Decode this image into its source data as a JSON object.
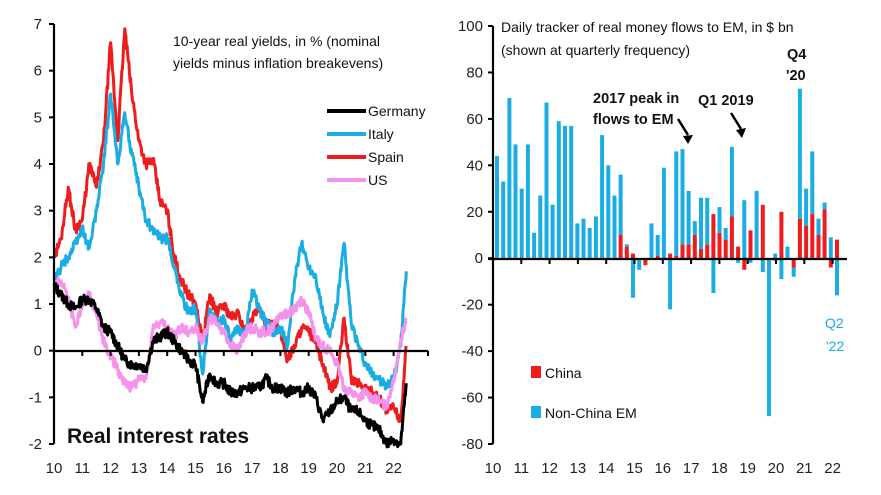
{
  "chart_data": [
    {
      "type": "line",
      "panel_label": "Real interest rates",
      "title": "10-year real yields, in % (nominal yields minus inflation breakevens)",
      "title_lines": [
        "10-year real yields, in % (nominal",
        "yields minus inflation breakevens)"
      ],
      "xlabel": "",
      "ylabel": "",
      "ylim": [
        -2,
        7
      ],
      "yticks": [
        "7",
        "6",
        "5",
        "4",
        "3",
        "2",
        "1",
        "0",
        "-1",
        "-2"
      ],
      "ytick_values": [
        7,
        6,
        5,
        4,
        3,
        2,
        1,
        0,
        -1,
        -2
      ],
      "xticks": [
        "10",
        "11",
        "12",
        "13",
        "14",
        "15",
        "16",
        "17",
        "18",
        "19",
        "20",
        "21",
        "22"
      ],
      "xlim": [
        2010,
        2022.75
      ],
      "legend_position": "top-right",
      "grid": false,
      "series": [
        {
          "name": "Germany",
          "color": "#000000",
          "x": [
            2010,
            2010.25,
            2010.5,
            2010.75,
            2011,
            2011.25,
            2011.5,
            2011.75,
            2012,
            2012.25,
            2012.5,
            2012.75,
            2013,
            2013.25,
            2013.5,
            2013.75,
            2014,
            2014.25,
            2014.5,
            2014.75,
            2015,
            2015.25,
            2015.5,
            2015.75,
            2016,
            2016.25,
            2016.5,
            2016.75,
            2017,
            2017.25,
            2017.5,
            2017.75,
            2018,
            2018.25,
            2018.5,
            2018.75,
            2019,
            2019.25,
            2019.5,
            2019.75,
            2020,
            2020.25,
            2020.5,
            2020.75,
            2021,
            2021.25,
            2021.5,
            2021.75,
            2022,
            2022.25,
            2022.45
          ],
          "y": [
            1.4,
            1.2,
            1.0,
            0.9,
            1.1,
            1.1,
            0.9,
            0.5,
            0.4,
            0.1,
            -0.2,
            -0.3,
            -0.3,
            -0.4,
            0.2,
            0.3,
            0.4,
            0.2,
            0.0,
            -0.2,
            -0.3,
            -1.1,
            -0.5,
            -0.7,
            -0.7,
            -0.9,
            -0.9,
            -0.8,
            -0.8,
            -0.8,
            -0.6,
            -0.8,
            -0.8,
            -0.9,
            -0.8,
            -0.9,
            -0.8,
            -1.0,
            -1.5,
            -1.3,
            -1.1,
            -1.0,
            -1.3,
            -1.3,
            -1.5,
            -1.6,
            -1.7,
            -2.0,
            -1.9,
            -2.0,
            -0.7
          ]
        },
        {
          "name": "Italy",
          "color": "#1AADE3",
          "x": [
            2010,
            2010.25,
            2010.5,
            2010.75,
            2011,
            2011.25,
            2011.5,
            2011.75,
            2012,
            2012.25,
            2012.5,
            2012.75,
            2013,
            2013.25,
            2013.5,
            2013.75,
            2014,
            2014.25,
            2014.5,
            2014.75,
            2015,
            2015.25,
            2015.5,
            2015.75,
            2016,
            2016.25,
            2016.5,
            2016.75,
            2017,
            2017.25,
            2017.5,
            2017.75,
            2018,
            2018.25,
            2018.5,
            2018.75,
            2019,
            2019.25,
            2019.5,
            2019.75,
            2020,
            2020.25,
            2020.5,
            2020.75,
            2021,
            2021.25,
            2021.5,
            2021.75,
            2022,
            2022.25,
            2022.45
          ],
          "y": [
            1.5,
            1.8,
            2.0,
            2.3,
            2.6,
            2.2,
            3.0,
            4.0,
            5.5,
            4.0,
            5.1,
            4.2,
            3.5,
            2.8,
            2.6,
            2.4,
            2.4,
            1.8,
            1.2,
            0.8,
            0.9,
            -0.5,
            0.9,
            0.6,
            0.7,
            0.2,
            0.5,
            0.3,
            1.3,
            0.9,
            0.6,
            0.4,
            0.5,
            0.1,
            1.5,
            2.3,
            1.8,
            1.6,
            0.8,
            0.3,
            1.0,
            2.3,
            0.6,
            0.1,
            -0.3,
            -0.5,
            -0.6,
            -0.8,
            -0.6,
            0.1,
            1.7
          ]
        },
        {
          "name": "Spain",
          "color": "#EE1C1C",
          "x": [
            2010,
            2010.25,
            2010.5,
            2010.75,
            2011,
            2011.25,
            2011.5,
            2011.75,
            2012,
            2012.25,
            2012.5,
            2012.75,
            2013,
            2013.25,
            2013.5,
            2013.75,
            2014,
            2014.25,
            2014.5,
            2014.75,
            2015,
            2015.25,
            2015.5,
            2015.75,
            2016,
            2016.25,
            2016.5,
            2016.75,
            2017,
            2017.25,
            2017.5,
            2017.75,
            2018,
            2018.25,
            2018.5,
            2018.75,
            2019,
            2019.25,
            2019.5,
            2019.75,
            2020,
            2020.25,
            2020.5,
            2020.75,
            2021,
            2021.25,
            2021.5,
            2021.75,
            2022,
            2022.25,
            2022.45
          ],
          "y": [
            2.0,
            2.4,
            3.5,
            2.6,
            2.8,
            4.0,
            3.5,
            4.5,
            6.6,
            4.5,
            6.9,
            5.5,
            4.5,
            4.0,
            4.1,
            3.2,
            3.0,
            2.0,
            1.5,
            1.2,
            1.0,
            0.2,
            1.2,
            0.8,
            1.0,
            0.7,
            0.8,
            0.4,
            0.7,
            0.9,
            0.5,
            0.6,
            0.4,
            -0.2,
            0.1,
            0.5,
            0.4,
            0.2,
            -0.3,
            -0.8,
            -0.7,
            0.7,
            -0.6,
            -0.7,
            -0.8,
            -0.9,
            -1.0,
            -1.3,
            -1.2,
            -1.5,
            0.1
          ]
        },
        {
          "name": "US",
          "color": "#F592EC",
          "x": [
            2010,
            2010.25,
            2010.5,
            2010.75,
            2011,
            2011.25,
            2011.5,
            2011.75,
            2012,
            2012.25,
            2012.5,
            2012.75,
            2013,
            2013.25,
            2013.5,
            2013.75,
            2014,
            2014.25,
            2014.5,
            2014.75,
            2015,
            2015.25,
            2015.5,
            2015.75,
            2016,
            2016.25,
            2016.5,
            2016.75,
            2017,
            2017.25,
            2017.5,
            2017.75,
            2018,
            2018.25,
            2018.5,
            2018.75,
            2019,
            2019.25,
            2019.5,
            2019.75,
            2020,
            2020.25,
            2020.5,
            2020.75,
            2021,
            2021.25,
            2021.5,
            2021.75,
            2022,
            2022.25,
            2022.45
          ],
          "y": [
            1.4,
            1.5,
            1.1,
            0.5,
            1.0,
            1.2,
            0.8,
            0.2,
            -0.1,
            -0.4,
            -0.7,
            -0.8,
            -0.6,
            -0.6,
            0.5,
            0.6,
            0.5,
            0.3,
            0.5,
            0.4,
            0.5,
            0.2,
            0.7,
            0.6,
            0.4,
            0.1,
            0.0,
            0.4,
            0.5,
            0.4,
            0.4,
            0.5,
            0.8,
            0.8,
            0.9,
            1.1,
            0.8,
            0.3,
            0.1,
            0.0,
            -0.3,
            -0.8,
            -0.9,
            -1.0,
            -0.9,
            -1.0,
            -1.1,
            -1.2,
            -0.6,
            0.2,
            0.7
          ]
        }
      ]
    },
    {
      "type": "bar",
      "stacked": true,
      "title": "Daily tracker of real money flows to EM, in $ bn",
      "title_lines": [
        "Daily tracker of real money flows to EM, in $ bn",
        "(shown at quarterly frequency)"
      ],
      "xlabel": "",
      "ylabel": "",
      "ylim": [
        -80,
        100
      ],
      "yticks": [
        "100",
        "80",
        "60",
        "40",
        "20",
        "0",
        "-20",
        "-40",
        "-60",
        "-80"
      ],
      "ytick_values": [
        100,
        80,
        60,
        40,
        20,
        0,
        -20,
        -40,
        -60,
        -80
      ],
      "xticks": [
        "10",
        "11",
        "12",
        "13",
        "14",
        "15",
        "16",
        "17",
        "18",
        "19",
        "20",
        "21",
        "22"
      ],
      "frequency": "quarterly",
      "first_period": "2010 Q1",
      "legend_position": "bottom-left",
      "grid": false,
      "series": [
        {
          "name": "China",
          "color": "#EE1C1C",
          "values": [
            0,
            0,
            0,
            0,
            0,
            0,
            0,
            0,
            0,
            0,
            0,
            0,
            0,
            0,
            0,
            0,
            0,
            0,
            0,
            0,
            10,
            5,
            2,
            0,
            -3,
            0,
            1,
            0,
            2,
            1,
            6,
            6,
            10,
            4,
            6,
            19,
            11,
            8,
            18,
            5,
            -5,
            12,
            0,
            23,
            0,
            -1,
            20,
            0,
            -4,
            17,
            14,
            19,
            10,
            21,
            -4,
            8
          ]
        },
        {
          "name": "Non-China EM",
          "color": "#1AADE3",
          "values": [
            44,
            33,
            69,
            49,
            30,
            49,
            11,
            27,
            67,
            23,
            59,
            57,
            57,
            15,
            17,
            13,
            18,
            53,
            40,
            27,
            26,
            1,
            -17,
            -5,
            0,
            15,
            9,
            39,
            -22,
            45,
            41,
            23,
            6,
            22,
            20,
            -15,
            11,
            5,
            30,
            -2,
            25,
            -2,
            29,
            -6,
            -68,
            2,
            -9,
            5,
            -4,
            56,
            16,
            27,
            7,
            3,
            9,
            -16
          ]
        }
      ],
      "totals_note": "bar tops shown as China + Non-China EM for positive quarters",
      "annotations": [
        {
          "text_lines": [
            "2017 peak in",
            "flows to EM"
          ],
          "target": "2017 Q1"
        },
        {
          "text_lines": [
            "Q1 2019"
          ],
          "target": "2019 Q1"
        },
        {
          "text_lines": [
            "Q4",
            "'20"
          ],
          "target": "2020 Q4"
        },
        {
          "text_lines": [
            "Q2",
            "'22"
          ],
          "target": "2022 Q2",
          "color": "#1AADE3"
        }
      ]
    }
  ]
}
